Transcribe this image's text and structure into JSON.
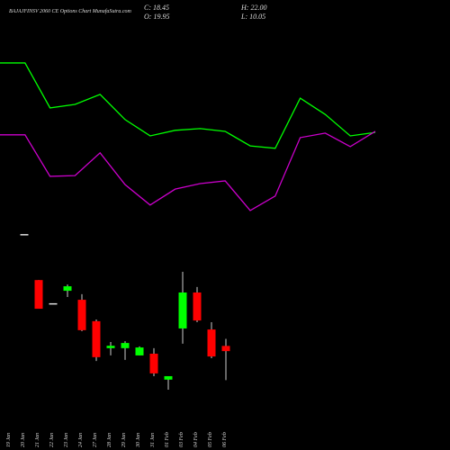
{
  "chart_data": {
    "type": "candlestick",
    "title": "BAJAJFINSV 2060 CE Options Chart MunafaSutra.com",
    "info": [
      "C: 18.45",
      "H: 22.00",
      "O: 19.95",
      "L: 10.05"
    ],
    "categories": [
      "19 Jan",
      "20 Jan",
      "21 Jan",
      "22 Jan",
      "23 Jan",
      "24 Jan",
      "27 Jan",
      "28 Jan",
      "29 Jan",
      "30 Jan",
      "31 Jan",
      "01 Feb",
      "03 Feb",
      "04 Feb",
      "05 Feb",
      "06 Feb"
    ],
    "open": [
      null,
      52.3,
      39.0,
      32.3,
      35.9,
      33.3,
      27.1,
      19.3,
      19.3,
      17.2,
      17.7,
      10.2,
      25.0,
      35.4,
      24.7,
      19.95
    ],
    "high": [
      null,
      52.3,
      39.0,
      32.3,
      37.7,
      34.9,
      27.6,
      21.1,
      21.3,
      19.8,
      19.3,
      11.2,
      41.4,
      37.0,
      26.8,
      22.0
    ],
    "low": [
      null,
      52.3,
      30.7,
      32.3,
      34.1,
      24.2,
      15.6,
      17.2,
      15.9,
      17.2,
      11.2,
      7.3,
      20.6,
      26.8,
      16.4,
      10.05
    ],
    "close": [
      null,
      52.3,
      30.7,
      32.3,
      37.2,
      24.5,
      16.7,
      20.0,
      20.8,
      19.5,
      12.0,
      11.2,
      35.4,
      27.3,
      16.9,
      18.45
    ],
    "up_color": "#00ff00",
    "down_color": "#ff0000",
    "flat_color": "#dddddd",
    "wick_color": "#cccccc",
    "lines": [
      {
        "color": "#00ff00",
        "values": [
          101.8,
          101.8,
          88.8,
          89.8,
          92.7,
          85.4,
          80.7,
          82.3,
          82.8,
          82.0,
          77.8,
          77.1,
          91.6,
          86.9,
          80.7,
          81.7
        ]
      },
      {
        "color": "#cc00cc",
        "values": [
          81.0,
          81.0,
          69.0,
          69.2,
          75.8,
          66.6,
          60.7,
          65.3,
          66.9,
          67.7,
          59.1,
          63.3,
          80.2,
          81.5,
          77.6,
          82.0
        ]
      }
    ],
    "ylim": [
      0,
      120
    ]
  }
}
